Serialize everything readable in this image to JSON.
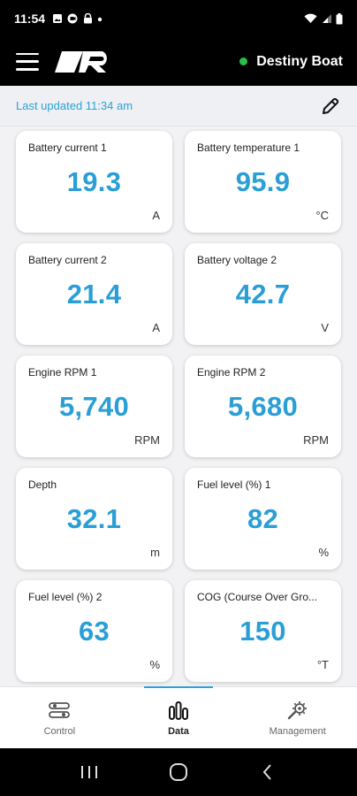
{
  "status_bar": {
    "time": "11:54"
  },
  "header": {
    "boat_name": "Destiny Boat",
    "online_color": "#27c04b"
  },
  "update": {
    "text": "Last updated 11:34 am"
  },
  "cards": [
    {
      "label": "Battery current 1",
      "value": "19.3",
      "unit": "A"
    },
    {
      "label": "Battery temperature 1",
      "value": "95.9",
      "unit": "°C"
    },
    {
      "label": "Battery current 2",
      "value": "21.4",
      "unit": "A"
    },
    {
      "label": "Battery voltage 2",
      "value": "42.7",
      "unit": "V"
    },
    {
      "label": "Engine RPM 1",
      "value": "5,740",
      "unit": "RPM"
    },
    {
      "label": "Engine RPM 2",
      "value": "5,680",
      "unit": "RPM"
    },
    {
      "label": "Depth",
      "value": "32.1",
      "unit": "m"
    },
    {
      "label": "Fuel level (%) 1",
      "value": "82",
      "unit": "%"
    },
    {
      "label": "Fuel level (%) 2",
      "value": "63",
      "unit": "%"
    },
    {
      "label": "COG (Course Over Gro...",
      "value": "150",
      "unit": "°T"
    }
  ],
  "nav": {
    "items": [
      {
        "label": "Control",
        "icon": "sliders-icon"
      },
      {
        "label": "Data",
        "icon": "bar-gauge-icon"
      },
      {
        "label": "Management",
        "icon": "wrench-gear-icon"
      }
    ],
    "active": "Data"
  },
  "colors": {
    "accent": "#2a9fd6",
    "header_bg": "#000000"
  }
}
